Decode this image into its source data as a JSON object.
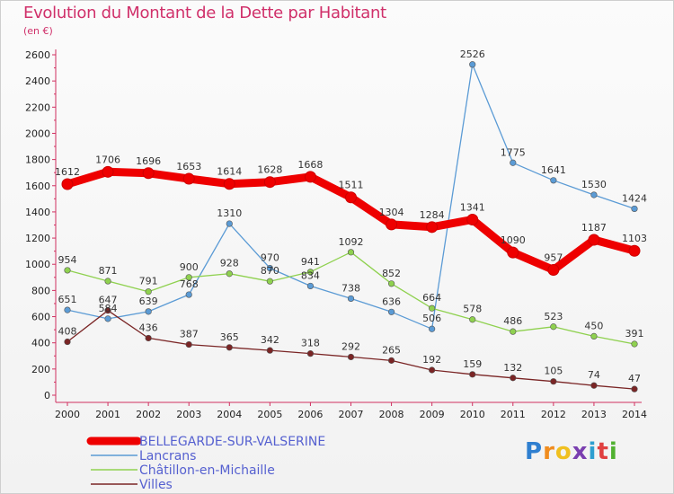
{
  "header": {
    "title": "Evolution du Montant de la Dette par Habitant",
    "subtitle": "(en €)"
  },
  "chart_data": {
    "type": "line",
    "title": "Evolution du Montant de la Dette par Habitant",
    "subtitle": "(en €)",
    "xlabel": "",
    "ylabel": "",
    "x": [
      "2000",
      "2001",
      "2002",
      "2003",
      "2004",
      "2005",
      "2006",
      "2007",
      "2008",
      "2009",
      "2010",
      "2011",
      "2012",
      "2013",
      "2014"
    ],
    "ylim": [
      0,
      2600
    ],
    "yticks": [
      0,
      200,
      400,
      600,
      800,
      1000,
      1200,
      1400,
      1600,
      1800,
      2000,
      2200,
      2400,
      2600
    ],
    "grid": false,
    "legend_position": "bottom-left",
    "series": [
      {
        "name": "BELLEGARDE-SUR-VALSERINE",
        "color": "#ee0000",
        "values": [
          1612,
          1706,
          1696,
          1653,
          1614,
          1628,
          1668,
          1511,
          1304,
          1284,
          1341,
          1090,
          957,
          1187,
          1103
        ]
      },
      {
        "name": "Lancrans",
        "color": "#5b9bd5",
        "values": [
          651,
          584,
          639,
          768,
          1310,
          970,
          834,
          738,
          636,
          506,
          2526,
          1775,
          1641,
          1530,
          1424
        ]
      },
      {
        "name": "Châtillon-en-Michaille",
        "color": "#8fd14f",
        "values": [
          954,
          871,
          791,
          900,
          928,
          870,
          941,
          1092,
          852,
          664,
          578,
          486,
          523,
          450,
          391
        ]
      },
      {
        "name": "Villes",
        "color": "#7a2525",
        "values": [
          408,
          647,
          436,
          387,
          365,
          342,
          318,
          292,
          265,
          192,
          159,
          132,
          105,
          74,
          47
        ]
      }
    ]
  },
  "logo": {
    "letters": [
      "P",
      "r",
      "o",
      "x",
      "i",
      "t",
      "i"
    ],
    "colors": [
      "#2f7fd0",
      "#f08c1e",
      "#f0c020",
      "#7a3fb0",
      "#2f9fd0",
      "#e04040",
      "#50b030"
    ]
  }
}
